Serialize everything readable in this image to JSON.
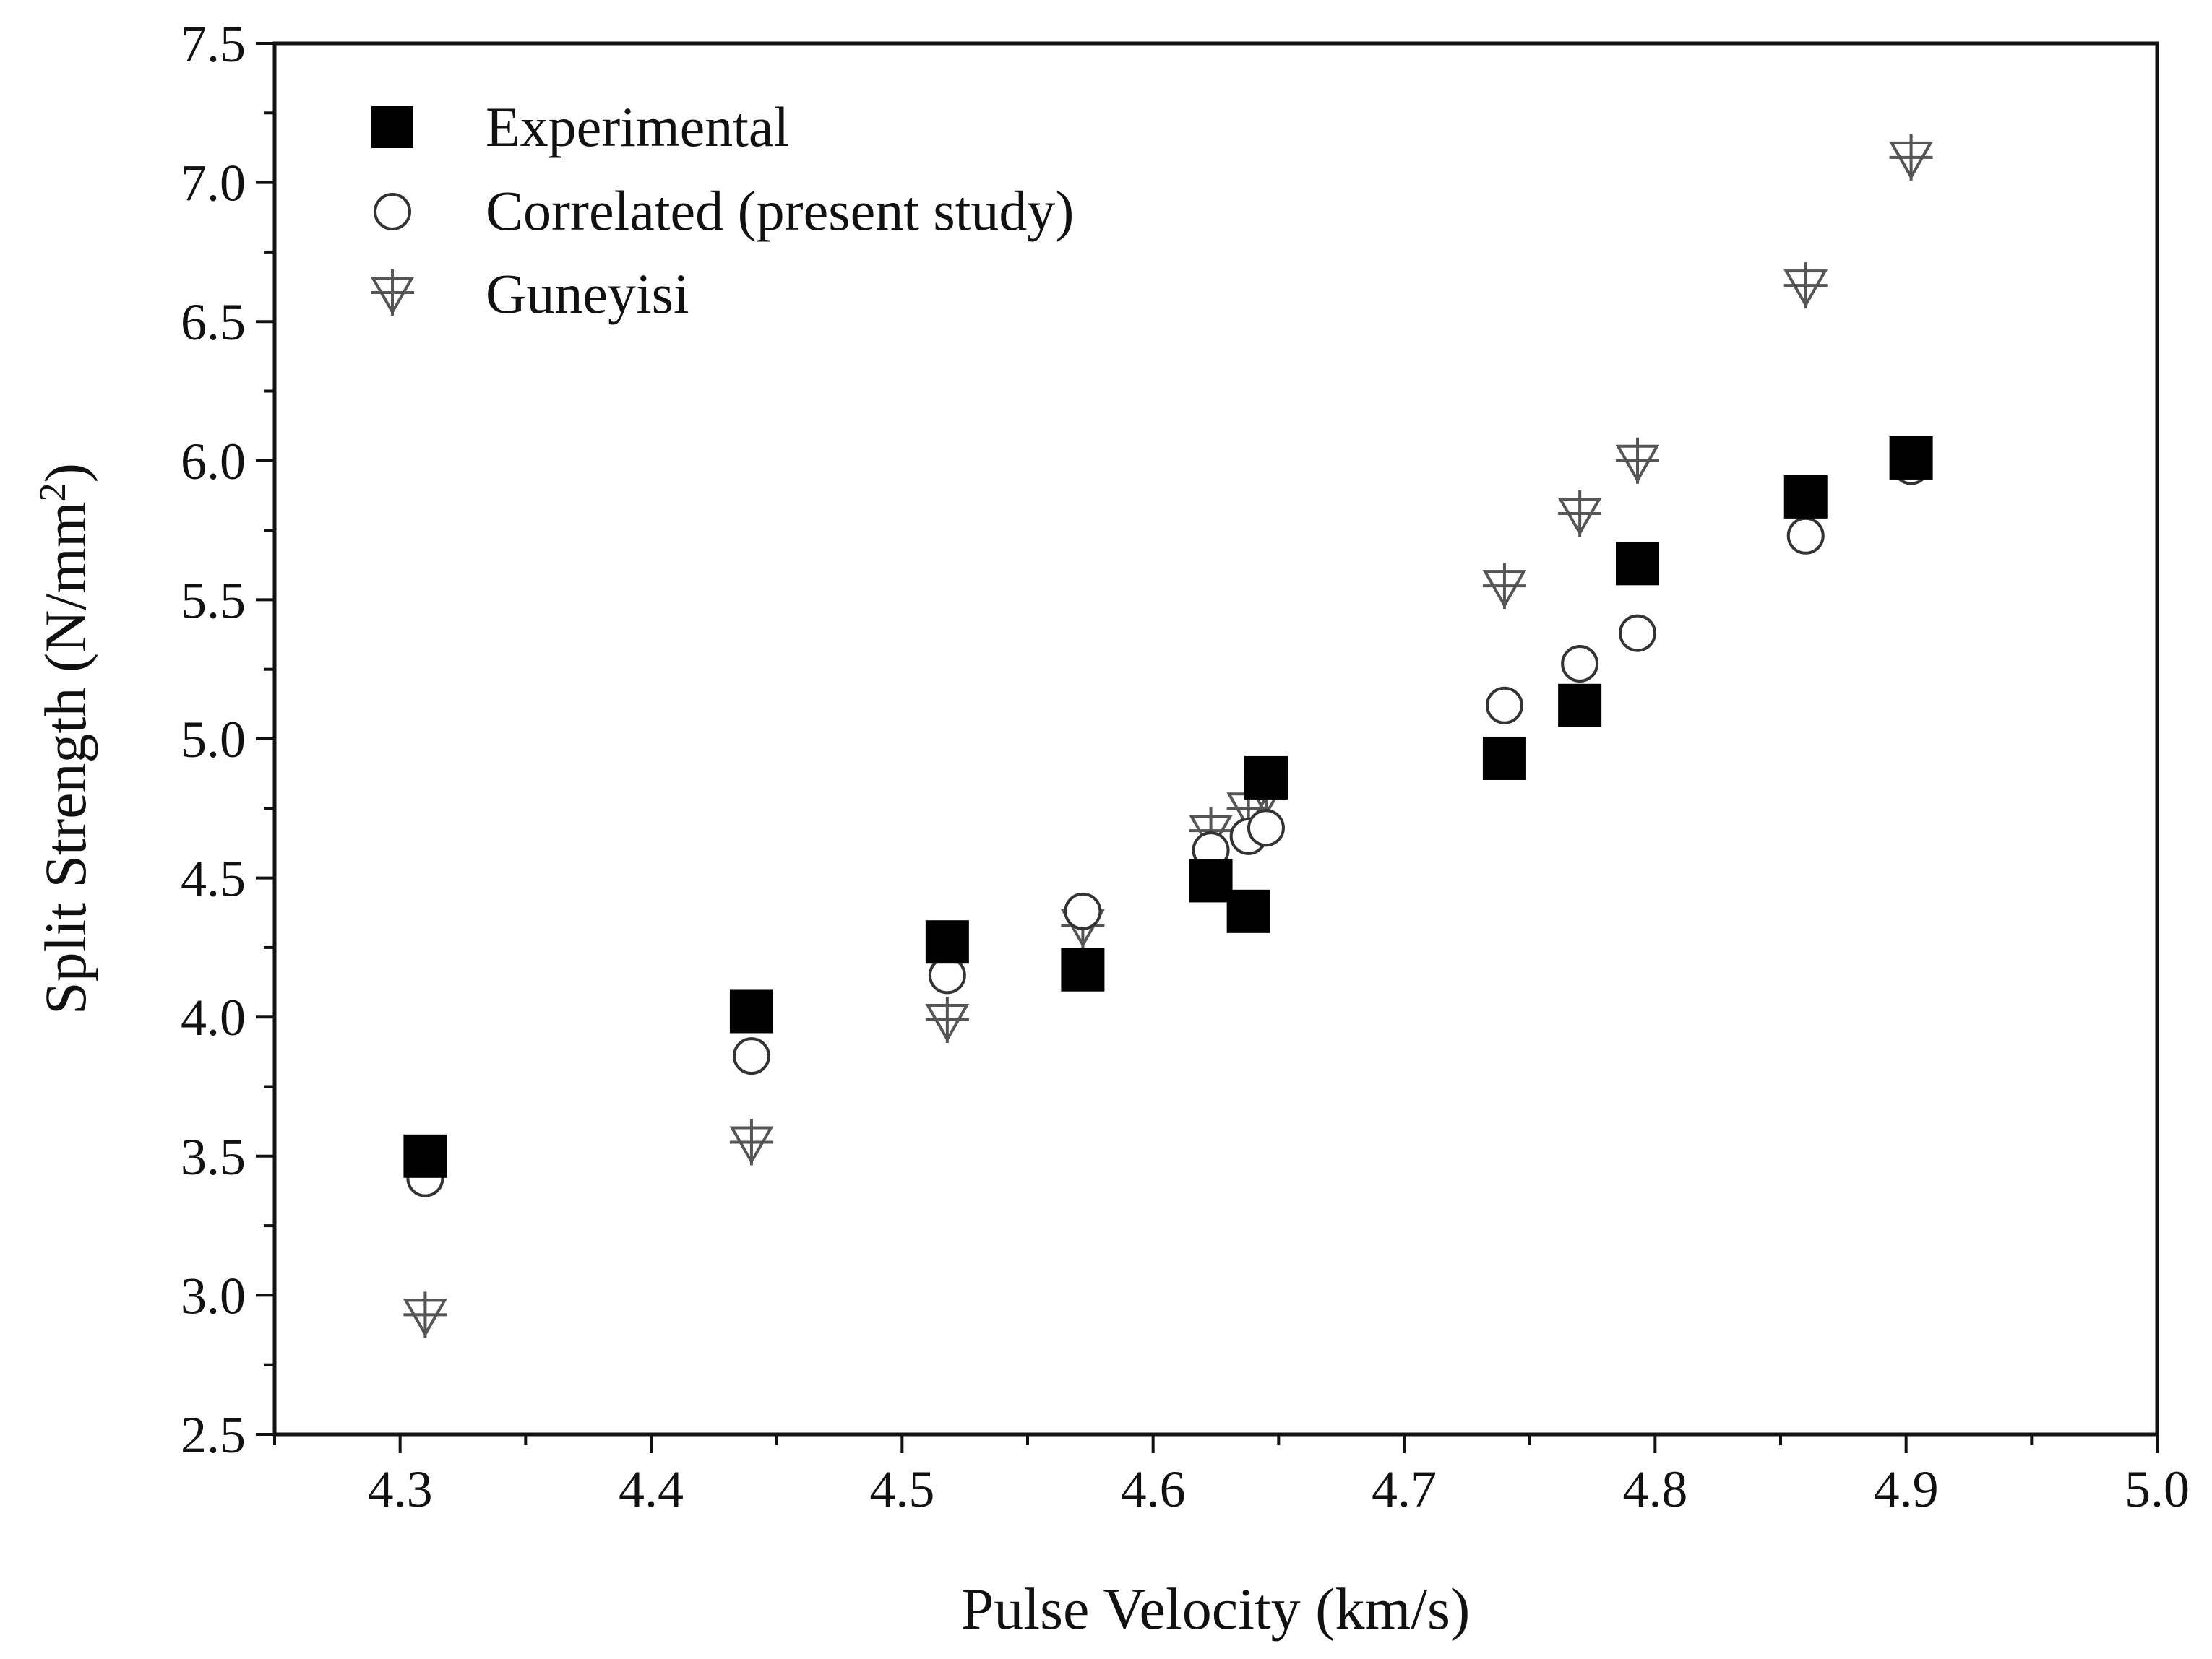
{
  "chart_data": {
    "type": "scatter",
    "title": "",
    "xlabel": "Pulse Velocity (km/s)",
    "ylabel_main": "Split Strength (N/mm",
    "ylabel_sup": "2",
    "ylabel_close": ")",
    "xlim": [
      4.25,
      5.0
    ],
    "ylim": [
      2.5,
      7.5
    ],
    "x_ticks": [
      "4.3",
      "4.4",
      "4.5",
      "4.6",
      "4.7",
      "4.8",
      "4.9",
      "5.0"
    ],
    "y_ticks": [
      "2.5",
      "3.0",
      "3.5",
      "4.0",
      "4.5",
      "5.0",
      "5.5",
      "6.0",
      "6.5",
      "7.0",
      "7.5"
    ],
    "grid": false,
    "legend_position": "top-left",
    "series": [
      {
        "name": "Experimental",
        "marker": "filled-square",
        "color": "#000000",
        "points": [
          [
            4.31,
            3.5
          ],
          [
            4.44,
            4.02
          ],
          [
            4.518,
            4.27
          ],
          [
            4.572,
            4.17
          ],
          [
            4.623,
            4.49
          ],
          [
            4.638,
            4.38
          ],
          [
            4.645,
            4.86
          ],
          [
            4.74,
            4.93
          ],
          [
            4.77,
            5.12
          ],
          [
            4.793,
            5.63
          ],
          [
            4.86,
            5.87
          ],
          [
            4.902,
            6.01
          ]
        ]
      },
      {
        "name": "Correlated (present study)",
        "marker": "open-circle",
        "color": "#333333",
        "points": [
          [
            4.31,
            3.42
          ],
          [
            4.44,
            3.86
          ],
          [
            4.518,
            4.15
          ],
          [
            4.572,
            4.38
          ],
          [
            4.623,
            4.6
          ],
          [
            4.638,
            4.65
          ],
          [
            4.645,
            4.68
          ],
          [
            4.74,
            5.12
          ],
          [
            4.77,
            5.27
          ],
          [
            4.793,
            5.38
          ],
          [
            4.86,
            5.73
          ],
          [
            4.902,
            5.98
          ]
        ]
      },
      {
        "name": "Guneyisi",
        "marker": "down-triangle-cross",
        "color": "#555555",
        "points": [
          [
            4.31,
            2.93
          ],
          [
            4.44,
            3.55
          ],
          [
            4.518,
            3.99
          ],
          [
            4.572,
            4.33
          ],
          [
            4.623,
            4.67
          ],
          [
            4.638,
            4.75
          ],
          [
            4.645,
            4.8
          ],
          [
            4.74,
            5.55
          ],
          [
            4.77,
            5.81
          ],
          [
            4.793,
            6.0
          ],
          [
            4.86,
            6.63
          ],
          [
            4.902,
            7.09
          ]
        ]
      }
    ]
  }
}
